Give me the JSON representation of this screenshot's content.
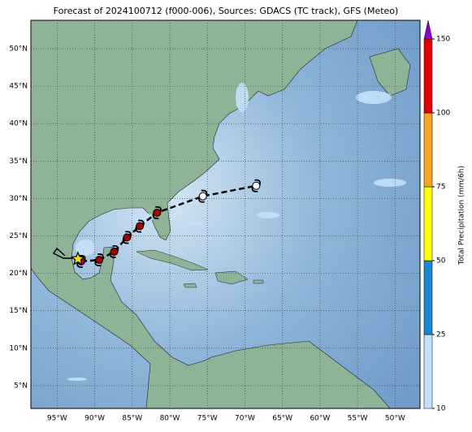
{
  "title": "Forecast of 2024100712 (f000-006), Sources: GDACS (TC track), GFS (Meteo)",
  "map": {
    "lat_ticks": [
      {
        "value": 5,
        "label": "5°N"
      },
      {
        "value": 10,
        "label": "10°N"
      },
      {
        "value": 15,
        "label": "15°N"
      },
      {
        "value": 20,
        "label": "20°N"
      },
      {
        "value": 25,
        "label": "25°N"
      },
      {
        "value": 30,
        "label": "30°N"
      },
      {
        "value": 35,
        "label": "35°N"
      },
      {
        "value": 40,
        "label": "40°N"
      },
      {
        "value": 45,
        "label": "45°N"
      },
      {
        "value": 50,
        "label": "50°N"
      }
    ],
    "lon_ticks": [
      {
        "value": -95,
        "label": "95°W"
      },
      {
        "value": -90,
        "label": "90°W"
      },
      {
        "value": -85,
        "label": "85°W"
      },
      {
        "value": -80,
        "label": "80°W"
      },
      {
        "value": -75,
        "label": "75°W"
      },
      {
        "value": -70,
        "label": "70°W"
      },
      {
        "value": -65,
        "label": "65°W"
      },
      {
        "value": -60,
        "label": "60°W"
      },
      {
        "value": -55,
        "label": "55°W"
      },
      {
        "value": -50,
        "label": "50°W"
      }
    ],
    "track": [
      {
        "lon": -91.8,
        "lat": 21.6,
        "color": "#a00000"
      },
      {
        "lon": -89.4,
        "lat": 21.8,
        "color": "#a00000"
      },
      {
        "lon": -87.4,
        "lat": 22.9,
        "color": "#a00000"
      },
      {
        "lon": -85.7,
        "lat": 24.8,
        "color": "#a00000"
      },
      {
        "lon": -84.0,
        "lat": 26.3,
        "color": "#a00000"
      },
      {
        "lon": -81.7,
        "lat": 28.1,
        "color": "#a00000"
      },
      {
        "lon": -75.6,
        "lat": 30.3,
        "color": "#ffffff"
      },
      {
        "lon": -68.5,
        "lat": 31.7,
        "color": "#ffffff"
      }
    ]
  },
  "colorbar": {
    "label": "Total Precipitation (mm/6h)",
    "ticks": [
      10,
      25,
      50,
      75,
      100,
      150
    ],
    "colors": [
      "#c4e0fc",
      "#1c88d4",
      "#ffff00",
      "#f5a623",
      "#e00000"
    ],
    "extend_color": "#8a00c8"
  }
}
